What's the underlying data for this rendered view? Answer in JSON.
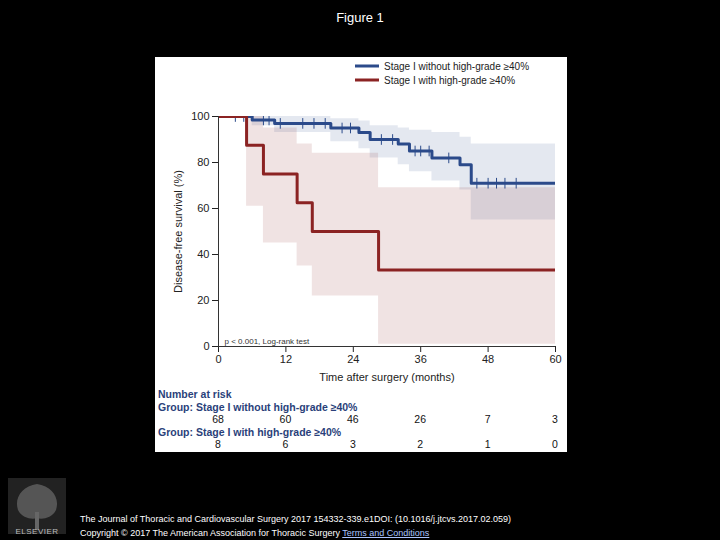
{
  "page": {
    "title": "Figure 1",
    "logo": "ELSEVIER",
    "citation": "The Journal of Thoracic and Cardiovascular Surgery 2017 154332-339.e1DOI: (10.1016/j.jtcvs.2017.02.059)",
    "copyright": "Copyright © 2017 The American Association for Thoracic Surgery",
    "link": "Terms and Conditions"
  },
  "chart_data": {
    "type": "line",
    "x_label": "Time after surgery (months)",
    "y_label": "Disease-free survival (%)",
    "annotation": "p < 0.001, Log-rank test",
    "xlim": [
      0,
      60
    ],
    "xticks": [
      0,
      12,
      24,
      36,
      48,
      60
    ],
    "ylim": [
      0,
      100
    ],
    "yticks": [
      0,
      20,
      40,
      60,
      80,
      100
    ],
    "legend": "top-right",
    "series": [
      {
        "name": "Stage I without high-grade ≥40%",
        "color": "#2b4a8a",
        "x": [
          0,
          6,
          10,
          20,
          25,
          27,
          32,
          34,
          38,
          43,
          45,
          60
        ],
        "values": [
          100,
          98.5,
          97,
          95,
          93,
          90,
          88,
          85,
          82,
          79,
          71,
          71
        ],
        "ci_lower": [
          100,
          96,
          93,
          89,
          86,
          82,
          79,
          76,
          72,
          68,
          55,
          55
        ],
        "ci_upper": [
          100,
          100,
          100,
          99,
          98,
          96,
          95,
          94,
          93,
          91,
          88,
          88
        ],
        "censored": [
          3,
          4.5,
          8,
          9,
          11,
          15,
          17,
          19,
          22,
          23.5,
          29,
          31,
          35,
          36,
          37.5,
          41,
          46,
          48,
          49.5,
          51,
          53
        ]
      },
      {
        "name": "Stage I with high-grade ≥40%",
        "color": "#8b2323",
        "x": [
          0,
          5,
          8,
          14,
          16.7,
          28.5,
          60
        ],
        "values": [
          100,
          87.5,
          75,
          62.5,
          50,
          33.3,
          33.3
        ],
        "ci_lower": [
          100,
          61,
          45,
          35,
          22,
          1,
          1
        ],
        "ci_upper": [
          100,
          100,
          95,
          88,
          84,
          69,
          69
        ]
      }
    ],
    "risk_table": {
      "title": "Number at risk",
      "x": [
        0,
        12,
        24,
        36,
        48,
        60
      ],
      "rows": [
        {
          "label": "Group: Stage I without high-grade ≥40%",
          "values": [
            68,
            60,
            46,
            26,
            7,
            3
          ]
        },
        {
          "label": "Group: Stage I with high-grade ≥40%",
          "values": [
            8,
            6,
            3,
            2,
            1,
            0
          ]
        }
      ]
    }
  }
}
